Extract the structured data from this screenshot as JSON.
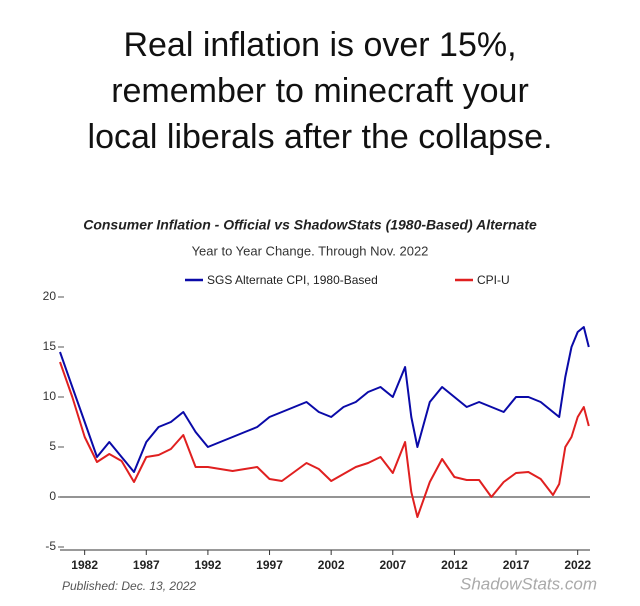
{
  "caption_lines": [
    "Real inflation is over 15%,",
    "remember to minecraft your",
    "local liberals after the collapse."
  ],
  "chart_data": {
    "type": "line",
    "title": "Consumer Inflation - Official vs ShadowStats (1980-Based) Alternate",
    "subtitle": "Year to Year Change. Through Nov. 2022",
    "x": [
      1980,
      1981,
      1982,
      1983,
      1984,
      1985,
      1986,
      1987,
      1988,
      1989,
      1990,
      1991,
      1992,
      1993,
      1994,
      1995,
      1996,
      1997,
      1998,
      1999,
      2000,
      2001,
      2002,
      2003,
      2004,
      2005,
      2006,
      2007,
      2008,
      2008.5,
      2009,
      2010,
      2011,
      2012,
      2013,
      2014,
      2015,
      2016,
      2017,
      2018,
      2019,
      2020,
      2020.5,
      2021,
      2021.5,
      2022,
      2022.5,
      2022.9
    ],
    "series": [
      {
        "name": "SGS Alternate CPI, 1980-Based",
        "color": "#0a0aa8",
        "values": [
          14.5,
          11,
          7.5,
          4,
          5.5,
          4,
          2.5,
          5.5,
          7,
          7.5,
          8.5,
          6.5,
          5,
          5.5,
          6,
          6.5,
          7,
          8,
          8.5,
          9,
          9.5,
          8.5,
          8,
          9,
          9.5,
          10.5,
          11,
          10,
          13,
          8,
          5,
          9.5,
          11,
          10,
          9,
          9.5,
          9,
          8.5,
          10,
          10,
          9.5,
          8.5,
          8,
          12,
          15,
          16.5,
          17,
          15
        ]
      },
      {
        "name": "CPI-U",
        "color": "#e02020",
        "values": [
          13.5,
          10,
          6,
          3.5,
          4.3,
          3.6,
          1.5,
          4,
          4.2,
          4.8,
          6.2,
          3,
          3,
          2.8,
          2.6,
          2.8,
          3,
          1.8,
          1.6,
          2.5,
          3.4,
          2.8,
          1.6,
          2.3,
          3,
          3.4,
          4,
          2.4,
          5.5,
          0.5,
          -2,
          1.5,
          3.8,
          2,
          1.7,
          1.7,
          0,
          1.5,
          2.4,
          2.5,
          1.8,
          0.2,
          1.3,
          5,
          6,
          8,
          9,
          7.1
        ]
      }
    ],
    "xlim": [
      1980,
      2023
    ],
    "xticks": [
      1982,
      1987,
      1992,
      1997,
      2002,
      2007,
      2012,
      2017,
      2022
    ],
    "ylim": [
      -5,
      20
    ],
    "yticks": [
      -5,
      0,
      5,
      10,
      15,
      20
    ],
    "footnote": "Published: Dec. 13, 2022",
    "watermark": "ShadowStats.com"
  }
}
